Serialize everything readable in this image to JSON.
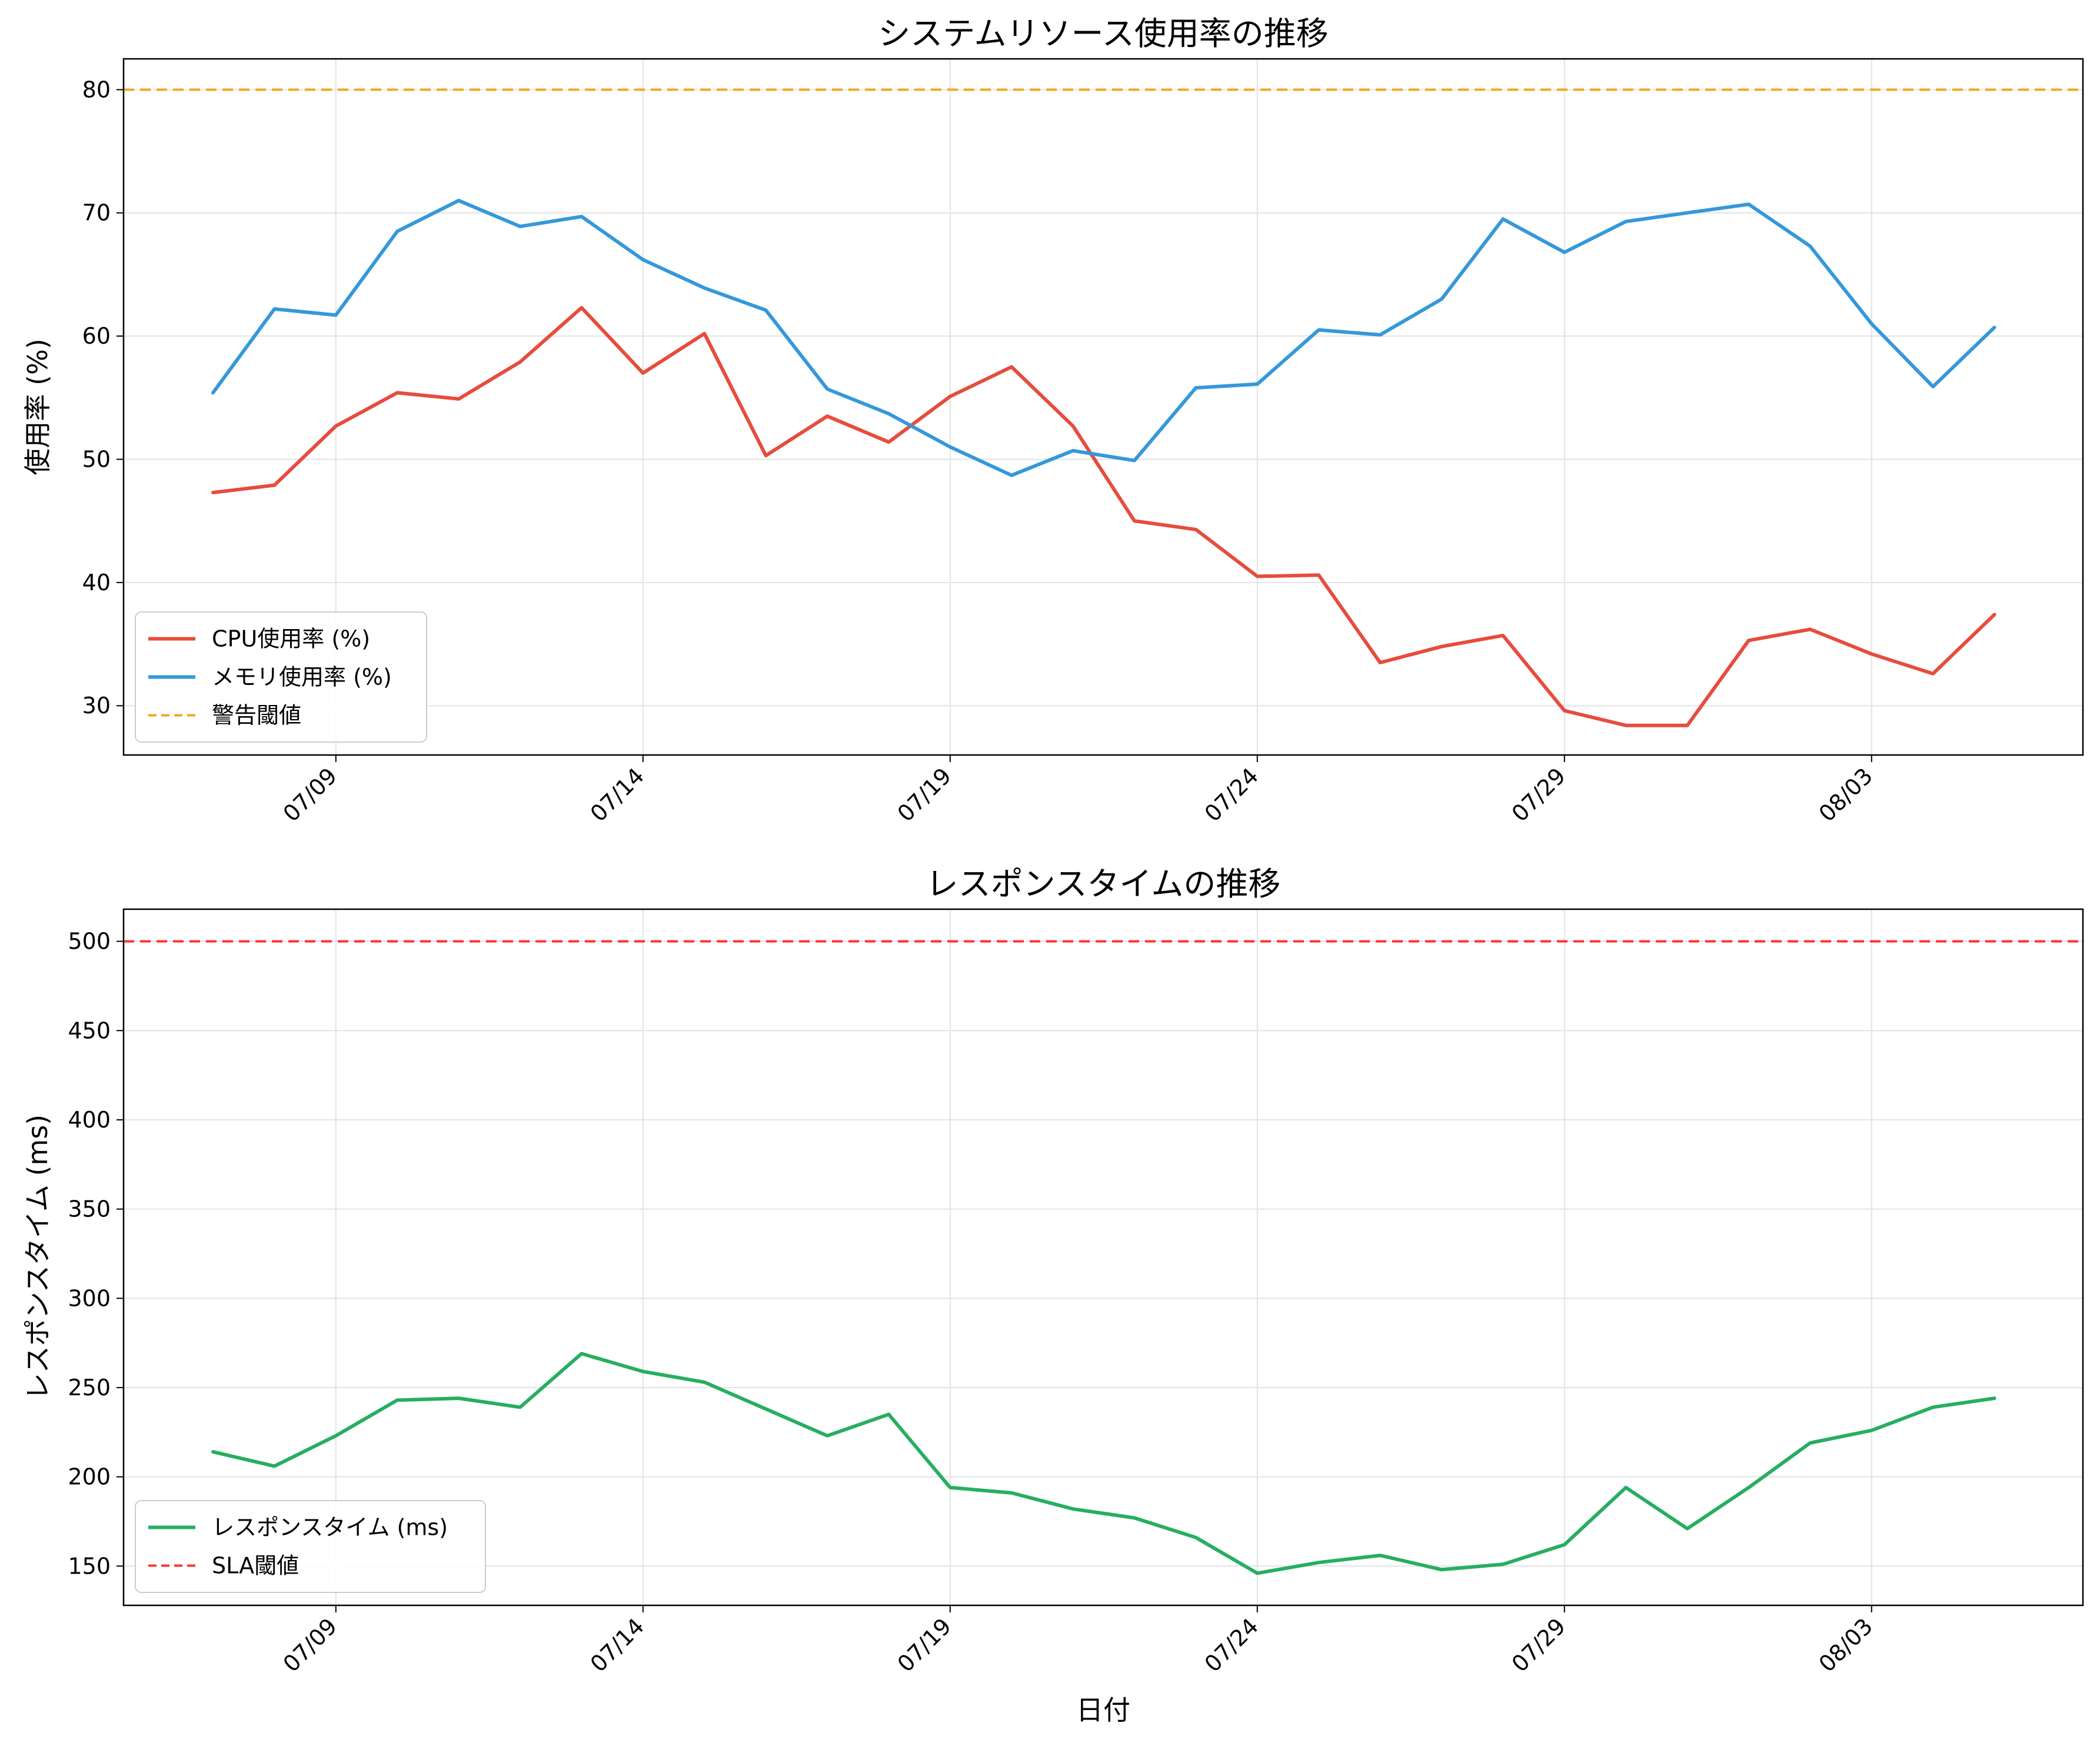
{
  "chart_data": [
    {
      "type": "line",
      "title": "システムリソース使用率の推移",
      "xlabel": "",
      "ylabel": "使用率 (%)",
      "x": [
        "07/07",
        "07/08",
        "07/09",
        "07/10",
        "07/11",
        "07/12",
        "07/13",
        "07/14",
        "07/15",
        "07/16",
        "07/17",
        "07/18",
        "07/19",
        "07/20",
        "07/21",
        "07/22",
        "07/23",
        "07/24",
        "07/25",
        "07/26",
        "07/27",
        "07/28",
        "07/29",
        "07/30",
        "07/31",
        "08/01",
        "08/02",
        "08/03",
        "08/04",
        "08/05"
      ],
      "xticks": [
        "07/09",
        "07/14",
        "07/19",
        "07/24",
        "07/29",
        "08/03"
      ],
      "ylim": [
        26,
        82.5
      ],
      "yticks": [
        30,
        40,
        50,
        60,
        70,
        80
      ],
      "grid": true,
      "legend": "lower-left",
      "series": [
        {
          "name": "CPU使用率 (%)",
          "color": "#e74c3c",
          "style": "solid",
          "values": [
            47.3,
            47.9,
            52.7,
            55.4,
            54.9,
            57.9,
            62.3,
            57.0,
            60.2,
            50.3,
            53.5,
            51.4,
            55.1,
            57.5,
            52.7,
            45.0,
            44.3,
            40.5,
            40.6,
            33.5,
            34.8,
            35.7,
            29.6,
            28.4,
            28.4,
            35.3,
            36.2,
            34.2,
            32.6,
            37.4
          ]
        },
        {
          "name": "メモリ使用率 (%)",
          "color": "#3498db",
          "style": "solid",
          "values": [
            55.4,
            62.2,
            61.7,
            68.5,
            71.0,
            68.9,
            69.7,
            66.2,
            63.9,
            62.1,
            55.7,
            53.7,
            51.0,
            48.7,
            50.7,
            49.9,
            55.8,
            56.1,
            60.5,
            60.1,
            63.0,
            69.5,
            66.8,
            69.3,
            70.0,
            70.7,
            67.3,
            61.0,
            55.9,
            60.7
          ]
        },
        {
          "name": "警告閾値",
          "color": "#f5a623",
          "style": "dashed",
          "constant": 80
        }
      ]
    },
    {
      "type": "line",
      "title": "レスポンスタイムの推移",
      "xlabel": "日付",
      "ylabel": "レスポンスタイム (ms)",
      "x": [
        "07/07",
        "07/08",
        "07/09",
        "07/10",
        "07/11",
        "07/12",
        "07/13",
        "07/14",
        "07/15",
        "07/16",
        "07/17",
        "07/18",
        "07/19",
        "07/20",
        "07/21",
        "07/22",
        "07/23",
        "07/24",
        "07/25",
        "07/26",
        "07/27",
        "07/28",
        "07/29",
        "07/30",
        "07/31",
        "08/01",
        "08/02",
        "08/03",
        "08/04",
        "08/05"
      ],
      "xticks": [
        "07/09",
        "07/14",
        "07/19",
        "07/24",
        "07/29",
        "08/03"
      ],
      "ylim": [
        128,
        518
      ],
      "yticks": [
        150,
        200,
        250,
        300,
        350,
        400,
        450,
        500
      ],
      "grid": true,
      "legend": "lower-left",
      "series": [
        {
          "name": "レスポンスタイム (ms)",
          "color": "#27ae60",
          "style": "solid",
          "values": [
            214,
            206,
            223,
            243,
            244,
            239,
            269,
            259,
            253,
            238,
            223,
            235,
            194,
            191,
            182,
            177,
            166,
            146,
            152,
            156,
            148,
            151,
            162,
            194,
            171,
            194,
            219,
            226,
            239,
            244
          ]
        },
        {
          "name": "SLA閾値",
          "color": "#ff3333",
          "style": "dashed",
          "constant": 500
        }
      ]
    }
  ]
}
